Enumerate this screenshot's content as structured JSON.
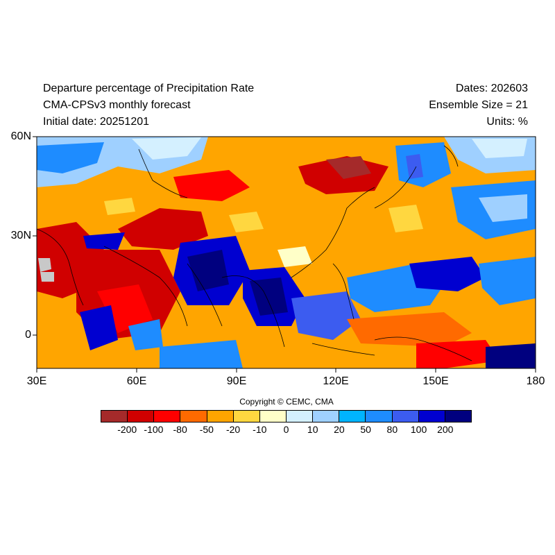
{
  "title": {
    "line1": "Departure percentage of Precipitation Rate",
    "line2": "CMA-CPSv3 monthly forecast",
    "line3": "Initial date: 20251201"
  },
  "info": {
    "dates": "Dates: 202603",
    "ensemble": "Ensemble Size = 21",
    "units": "Units: %"
  },
  "map": {
    "lon_range": [
      30,
      180
    ],
    "lat_range": [
      -10,
      60
    ],
    "y_ticks": [
      "60N",
      "30N",
      "0"
    ],
    "x_ticks": [
      "30E",
      "60E",
      "90E",
      "120E",
      "150E",
      "180"
    ]
  },
  "copyright": "Copyright © CEMC, CMA",
  "colorbar": {
    "colors": [
      "#a52a2a",
      "#d00000",
      "#ff0000",
      "#ff6a00",
      "#ffa500",
      "#ffd740",
      "#ffffc8",
      "#d4f0ff",
      "#9fd0ff",
      "#00b4ff",
      "#1e8cff",
      "#3c5cf0",
      "#0000d0",
      "#00007f"
    ],
    "labels": [
      "-200",
      "-100",
      "-80",
      "-50",
      "-20",
      "-10",
      "0",
      "10",
      "20",
      "50",
      "80",
      "100",
      "200"
    ]
  }
}
